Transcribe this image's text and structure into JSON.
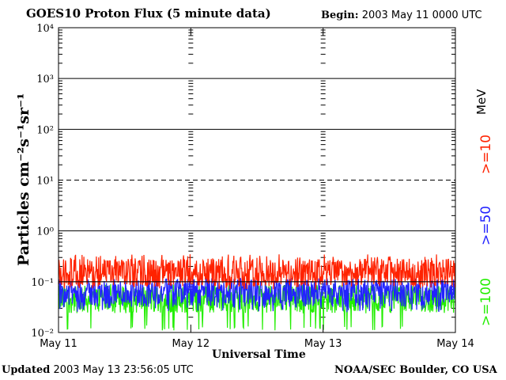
{
  "header": {
    "title": "GOES10 Proton Flux (5 minute data)",
    "begin_label": "Begin:",
    "begin_value": "2003 May 11 0000 UTC"
  },
  "footer": {
    "updated_label": "Updated",
    "updated_value": "2003 May 13 23:56:05 UTC",
    "credit": "NOAA/SEC Boulder, CO USA"
  },
  "chart_data": {
    "type": "line",
    "title": "GOES10 Proton Flux (5 minute data)",
    "xlabel": "Universal Time",
    "ylabel": "Particles cm⁻²s⁻¹sr⁻¹",
    "x_ticks": [
      "May 11",
      "May 12",
      "May 13",
      "May 14"
    ],
    "y_ticks": [
      "10⁻²",
      "10⁻¹",
      "10⁰",
      "10¹",
      "10²",
      "10³",
      "10⁴"
    ],
    "ylim": [
      0.01,
      10000
    ],
    "yscale": "log",
    "grid": true,
    "units_label": "MeV",
    "threshold_line": 0.1,
    "series": [
      {
        "name": ">=10",
        "color": "#ff2200",
        "typical": 0.15,
        "min": 0.07,
        "max": 0.35
      },
      {
        "name": ">=50",
        "color": "#2222ff",
        "typical": 0.06,
        "min": 0.025,
        "max": 0.12
      },
      {
        "name": ">=100",
        "color": "#22ee00",
        "typical": 0.045,
        "min": 0.011,
        "max": 0.09
      }
    ]
  }
}
